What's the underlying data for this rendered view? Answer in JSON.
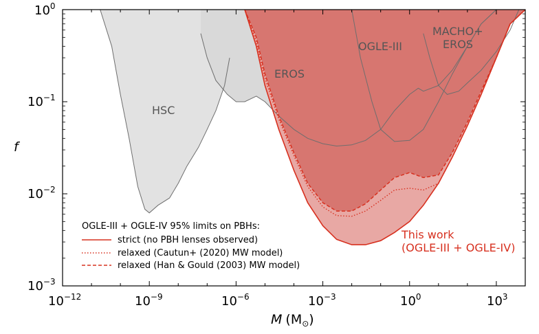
{
  "chart_data": {
    "type": "area",
    "xlabel_main": "M",
    "xlabel_unit": "(M",
    "xlabel_sub": "⊙",
    "xlabel_close": ")",
    "ylabel": "f",
    "xscale": "log",
    "yscale": "log",
    "xlim": [
      1e-12,
      10000.0
    ],
    "ylim": [
      0.001,
      1
    ],
    "xticks": [
      {
        "base": "10",
        "exp": "−12",
        "value": 1e-12
      },
      {
        "base": "10",
        "exp": "−9",
        "value": 1e-09
      },
      {
        "base": "10",
        "exp": "−6",
        "value": 1e-06
      },
      {
        "base": "10",
        "exp": "−3",
        "value": 0.001
      },
      {
        "base": "10",
        "exp": "0",
        "value": 1
      },
      {
        "base": "10",
        "exp": "3",
        "value": 1000.0
      }
    ],
    "yticks": [
      {
        "base": "10",
        "exp": "−3",
        "value": 0.001
      },
      {
        "base": "10",
        "exp": "−2",
        "value": 0.01
      },
      {
        "base": "10",
        "exp": "−1",
        "value": 0.1
      },
      {
        "base": "10",
        "exp": "0",
        "value": 1
      }
    ],
    "legend": {
      "placement": "lower-left",
      "title": "OGLE-III + OGLE-IV 95% limits on PBHs:",
      "entries": [
        {
          "label": "strict (no PBH lenses observed)",
          "style": "solid"
        },
        {
          "label": "relaxed (Cautun+ (2020) MW model)",
          "style": "dotted"
        },
        {
          "label": "relaxed (Han & Gould (2003) MW model)",
          "style": "dashed"
        }
      ]
    },
    "annotation": {
      "line1": "This work",
      "line2": "(OGLE-III + OGLE-IV)"
    },
    "series": [
      {
        "name": "HSC",
        "label": "HSC",
        "color": "#e2e2e2",
        "x": [
          2e-11,
          5e-11,
          1e-10,
          2e-10,
          4e-10,
          7e-10,
          1e-09,
          2e-09,
          5e-09,
          1e-08,
          2e-08,
          5e-08,
          1e-07,
          2e-07,
          4e-07,
          6e-07
        ],
        "y": [
          1,
          0.4,
          0.12,
          0.04,
          0.012,
          0.0068,
          0.0062,
          0.0075,
          0.009,
          0.013,
          0.02,
          0.032,
          0.05,
          0.08,
          0.15,
          0.3
        ]
      },
      {
        "name": "EROS",
        "label": "EROS",
        "color": "#d9d9d9",
        "x": [
          6e-08,
          1e-07,
          2e-07,
          5e-07,
          1e-06,
          2e-06,
          5e-06,
          1e-05,
          3e-05,
          0.0001,
          0.0003,
          0.001,
          0.003,
          0.01,
          0.03,
          0.1,
          0.3,
          1,
          2,
          3,
          10,
          30,
          100,
          300,
          1000
        ],
        "y": [
          0.55,
          0.3,
          0.17,
          0.12,
          0.1,
          0.1,
          0.115,
          0.1,
          0.07,
          0.05,
          0.04,
          0.035,
          0.033,
          0.034,
          0.038,
          0.05,
          0.08,
          0.12,
          0.14,
          0.13,
          0.15,
          0.22,
          0.4,
          0.7,
          1
        ]
      },
      {
        "name": "OGLE-III",
        "label": "OGLE-III",
        "color": "#6e6e6e",
        "x": [
          0.01,
          0.02,
          0.05,
          0.1,
          0.3,
          1,
          3,
          10,
          30,
          100,
          300,
          1000,
          3000
        ],
        "y": [
          1,
          0.3,
          0.1,
          0.05,
          0.037,
          0.038,
          0.05,
          0.1,
          0.2,
          0.4,
          0.7,
          1,
          1
        ]
      },
      {
        "name": "MACHO+EROS",
        "label_line1": "MACHO+",
        "label_line2": "EROS",
        "color": "#6e6e6e",
        "x": [
          3,
          5,
          10,
          20,
          50,
          100,
          300,
          1000,
          3000,
          6000
        ],
        "y": [
          0.55,
          0.3,
          0.15,
          0.12,
          0.13,
          0.16,
          0.22,
          0.35,
          0.6,
          1
        ]
      },
      {
        "name": "strict (no PBH lenses observed)",
        "color": "#d7301f",
        "x": [
          2e-06,
          5e-06,
          1e-05,
          3e-05,
          0.0001,
          0.0003,
          0.001,
          0.003,
          0.01,
          0.03,
          0.1,
          0.3,
          1,
          3,
          10,
          30,
          100,
          300,
          1000,
          3000,
          10000
        ],
        "y": [
          1,
          0.4,
          0.15,
          0.05,
          0.018,
          0.008,
          0.0045,
          0.0032,
          0.0028,
          0.0028,
          0.0031,
          0.0038,
          0.005,
          0.0075,
          0.013,
          0.025,
          0.055,
          0.12,
          0.3,
          0.7,
          1
        ]
      },
      {
        "name": "relaxed (Cautun+ (2020) MW model)",
        "color": "#d7301f",
        "x": [
          2e-06,
          5e-06,
          1e-05,
          3e-05,
          0.0001,
          0.0003,
          0.001,
          0.003,
          0.01,
          0.03,
          0.1,
          0.3,
          1,
          3,
          10,
          30,
          100,
          300,
          1000,
          3000,
          10000
        ],
        "y": [
          1,
          0.45,
          0.18,
          0.065,
          0.026,
          0.012,
          0.0072,
          0.0058,
          0.0057,
          0.0065,
          0.0085,
          0.011,
          0.0115,
          0.011,
          0.013,
          0.025,
          0.055,
          0.12,
          0.3,
          0.7,
          1
        ]
      },
      {
        "name": "relaxed (Han & Gould (2003) MW model)",
        "color": "#d7301f",
        "x": [
          2e-06,
          5e-06,
          1e-05,
          3e-05,
          0.0001,
          0.0003,
          0.001,
          0.003,
          0.01,
          0.03,
          0.1,
          0.3,
          1,
          3,
          10,
          30,
          100,
          300,
          1000,
          3000,
          10000
        ],
        "y": [
          1,
          0.5,
          0.2,
          0.07,
          0.028,
          0.013,
          0.008,
          0.0065,
          0.0065,
          0.0078,
          0.011,
          0.015,
          0.017,
          0.015,
          0.016,
          0.028,
          0.06,
          0.13,
          0.3,
          0.7,
          1
        ]
      }
    ],
    "colors": {
      "strict_fill": "#e8a8a4",
      "relaxed_fill": "#d77670",
      "work_line": "#d7301f",
      "hsc_fill": "#e2e2e2",
      "eros_fill": "#d9d9d9",
      "line_gray": "#6e6e6e"
    }
  }
}
